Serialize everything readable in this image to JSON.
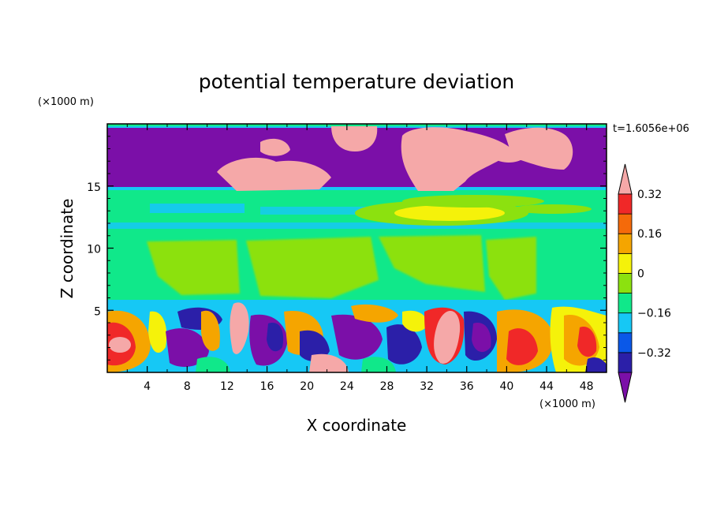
{
  "chart_data": {
    "type": "heatmap",
    "title": "potential temperature deviation",
    "xlabel": "X coordinate",
    "ylabel": "Z coordinate",
    "x_unit": "(×1000 m)",
    "y_unit": "(×1000 m)",
    "time_label": "t=1.6056e+06",
    "xlim": [
      0,
      50
    ],
    "ylim": [
      0,
      20
    ],
    "x_ticks": [
      4,
      8,
      12,
      16,
      20,
      24,
      28,
      32,
      36,
      40,
      44,
      48
    ],
    "y_ticks": [
      5,
      10,
      15
    ],
    "grid": false,
    "colorbar": {
      "labels": [
        "0.32",
        "0.16",
        "0",
        "-0.16",
        "-0.32"
      ],
      "label_values": [
        0.32,
        0.16,
        0,
        -0.16,
        -0.32
      ],
      "levels": [
        -0.4,
        -0.32,
        -0.24,
        -0.16,
        -0.08,
        0,
        0.08,
        0.16,
        0.24,
        0.32,
        0.4
      ],
      "colors": [
        "#7b0fa8",
        "#2b1fa8",
        "#0a58e8",
        "#16c8f5",
        "#10e88a",
        "#8ce10f",
        "#f5f20a",
        "#f5a500",
        "#f56a0a",
        "#f02828",
        "#f5a8a8"
      ],
      "extend": "both"
    },
    "regions": [
      {
        "desc": "upper layer",
        "z": [
          14.8,
          19.8
        ],
        "value": -0.45
      },
      {
        "desc": "upper-middle band",
        "z": [
          11,
          14.8
        ],
        "value": -0.05
      },
      {
        "desc": "middle band",
        "z": [
          5.8,
          11
        ],
        "value": 0.03
      },
      {
        "desc": "lower turbulent layer",
        "z": [
          0,
          5.8
        ],
        "value": "mixed"
      }
    ]
  }
}
